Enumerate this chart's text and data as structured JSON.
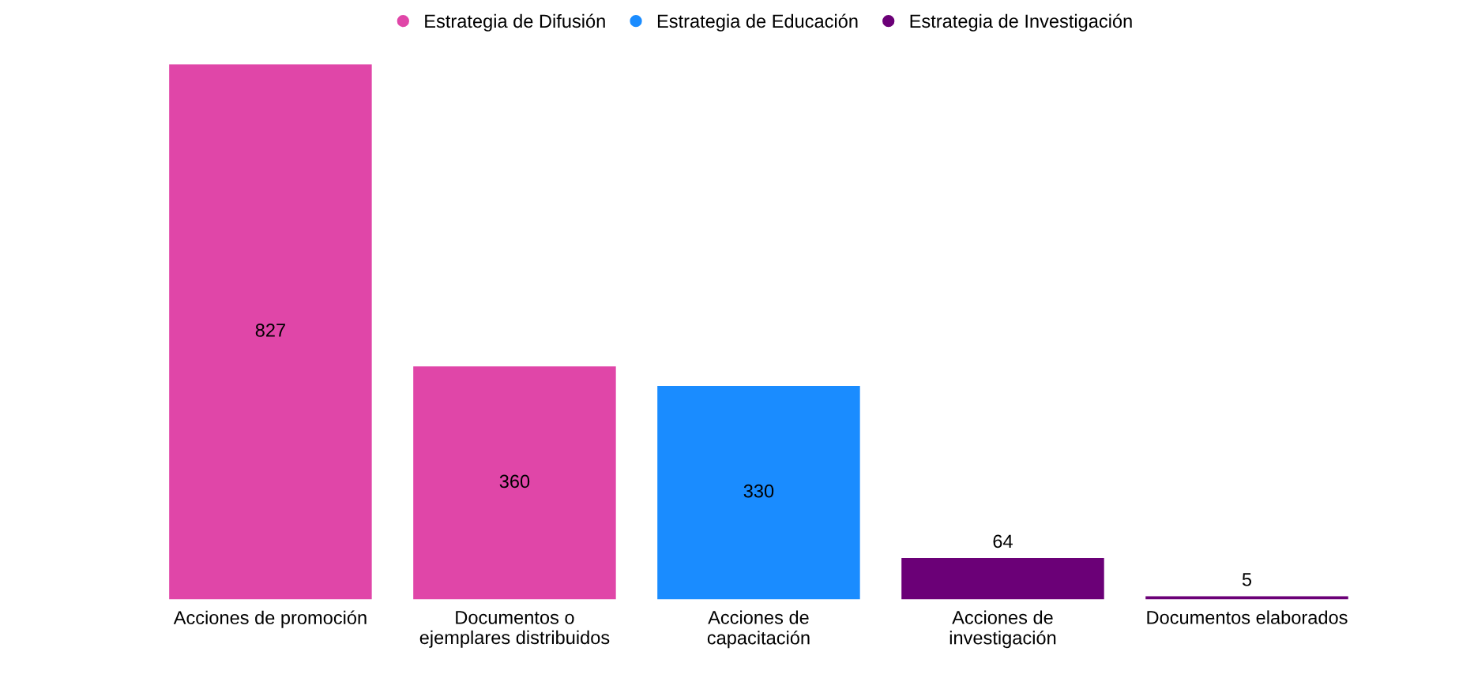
{
  "chart_data": {
    "type": "bar",
    "categories": [
      "Acciones de promoción",
      "Documentos o\nejemplares distribuidos",
      "Acciones de\ncapacitación",
      "Acciones de\ninvestigación",
      "Documentos elaborados"
    ],
    "series": [
      {
        "name": "Estrategia de Difusión",
        "color": "#e046a8",
        "values": [
          827,
          360,
          null,
          null,
          null
        ]
      },
      {
        "name": "Estrategia de Educación",
        "color": "#1a8cff",
        "values": [
          null,
          null,
          330,
          null,
          null
        ]
      },
      {
        "name": "Estrategia de Investigación",
        "color": "#6b0077",
        "values": [
          null,
          null,
          null,
          64,
          5
        ]
      }
    ],
    "data_labels": true,
    "legend": "top",
    "grid": false,
    "tick_labels": "x"
  }
}
